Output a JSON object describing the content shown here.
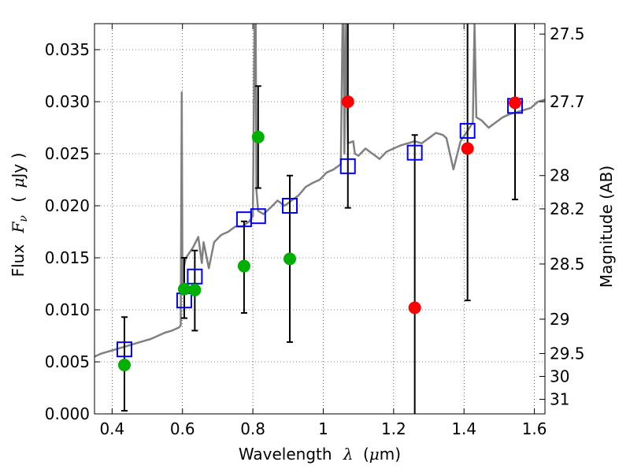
{
  "chart_data": {
    "type": "scatter",
    "title": "",
    "xlabel": "Wavelength",
    "xlabel_symbol": "λ",
    "xlabel_unit_open": "(",
    "xlabel_unit_mu": "μ",
    "xlabel_unit_rest": "m)",
    "ylabel": "Flux",
    "ylabel_symbol": "F",
    "ylabel_subscript": "ν",
    "ylabel_unit_open": "(",
    "ylabel_unit_mu": "μ",
    "ylabel_unit_rest": "Jy )",
    "ylabel_right": "Magnitude (AB)",
    "xlim": [
      0.35,
      1.63
    ],
    "ylim": [
      0.0,
      0.0375
    ],
    "grid": true,
    "x_ticks": [
      {
        "value": 0.4,
        "label": "0.4"
      },
      {
        "value": 0.6,
        "label": "0.6"
      },
      {
        "value": 0.8,
        "label": "0.8"
      },
      {
        "value": 1.0,
        "label": "1"
      },
      {
        "value": 1.2,
        "label": "1.2"
      },
      {
        "value": 1.4,
        "label": "1.4"
      },
      {
        "value": 1.6,
        "label": "1.6"
      }
    ],
    "y_ticks": [
      {
        "value": 0.0,
        "label": "0.000"
      },
      {
        "value": 0.005,
        "label": "0.005"
      },
      {
        "value": 0.01,
        "label": "0.010"
      },
      {
        "value": 0.015,
        "label": "0.015"
      },
      {
        "value": 0.02,
        "label": "0.020"
      },
      {
        "value": 0.025,
        "label": "0.025"
      },
      {
        "value": 0.03,
        "label": "0.030"
      },
      {
        "value": 0.035,
        "label": "0.035"
      }
    ],
    "right_ticks": [
      {
        "flux": 0.0365,
        "label": "27.5"
      },
      {
        "flux": 0.03,
        "label": "27.7"
      },
      {
        "flux": 0.0229,
        "label": "28"
      },
      {
        "flux": 0.0197,
        "label": "28.2"
      },
      {
        "flux": 0.0144,
        "label": "28.5"
      },
      {
        "flux": 0.0091,
        "label": "29"
      },
      {
        "flux": 0.0058,
        "label": "29.5"
      },
      {
        "flux": 0.0036,
        "label": "30"
      },
      {
        "flux": 0.0014,
        "label": "31"
      }
    ],
    "colors": {
      "spectrum": "#808080",
      "model_box": "#0000ff",
      "detection": "#00b000",
      "upper_limit": "#ff0000",
      "errorbar": "#000000"
    },
    "series": [
      {
        "kind": "spectrum",
        "x": [
          0.35,
          0.37,
          0.39,
          0.41,
          0.43,
          0.45,
          0.47,
          0.49,
          0.51,
          0.53,
          0.55,
          0.57,
          0.59,
          0.595,
          0.598,
          0.6,
          0.603,
          0.61,
          0.63,
          0.645,
          0.655,
          0.66,
          0.675,
          0.69,
          0.71,
          0.73,
          0.75,
          0.77,
          0.79,
          0.8,
          0.805,
          0.808,
          0.81,
          0.815,
          0.83,
          0.85,
          0.87,
          0.89,
          0.91,
          0.93,
          0.95,
          0.97,
          0.99,
          1.01,
          1.03,
          1.05,
          1.055,
          1.058,
          1.06,
          1.065,
          1.07,
          1.085,
          1.09,
          1.1,
          1.12,
          1.14,
          1.16,
          1.18,
          1.2,
          1.22,
          1.24,
          1.26,
          1.28,
          1.3,
          1.32,
          1.34,
          1.35,
          1.37,
          1.39,
          1.41,
          1.425,
          1.43,
          1.435,
          1.45,
          1.47,
          1.49,
          1.51,
          1.53,
          1.55,
          1.57,
          1.59,
          1.61,
          1.63
        ],
        "y": [
          0.0055,
          0.0058,
          0.006,
          0.0062,
          0.0064,
          0.0066,
          0.0068,
          0.007,
          0.0072,
          0.0075,
          0.0078,
          0.008,
          0.0083,
          0.0085,
          0.0309,
          0.012,
          0.014,
          0.015,
          0.016,
          0.017,
          0.0145,
          0.0165,
          0.014,
          0.0165,
          0.0172,
          0.0175,
          0.018,
          0.018,
          0.0185,
          0.019,
          0.0375,
          0.0375,
          0.0215,
          0.0195,
          0.0192,
          0.0198,
          0.0205,
          0.02,
          0.0205,
          0.021,
          0.0218,
          0.0222,
          0.0225,
          0.0232,
          0.0235,
          0.024,
          0.0375,
          0.0375,
          0.025,
          0.0375,
          0.026,
          0.0262,
          0.025,
          0.0248,
          0.0255,
          0.025,
          0.0245,
          0.0252,
          0.0255,
          0.0258,
          0.026,
          0.0262,
          0.026,
          0.0265,
          0.027,
          0.0268,
          0.0265,
          0.0235,
          0.0262,
          0.0272,
          0.028,
          0.0375,
          0.0285,
          0.0282,
          0.0275,
          0.028,
          0.0285,
          0.0288,
          0.029,
          0.0292,
          0.0294,
          0.03,
          0.0302
        ]
      },
      {
        "kind": "model_box",
        "points": [
          {
            "x": 0.435,
            "y": 0.0062
          },
          {
            "x": 0.605,
            "y": 0.0109
          },
          {
            "x": 0.635,
            "y": 0.0132
          },
          {
            "x": 0.775,
            "y": 0.0187
          },
          {
            "x": 0.815,
            "y": 0.019
          },
          {
            "x": 0.905,
            "y": 0.02
          },
          {
            "x": 1.07,
            "y": 0.0238
          },
          {
            "x": 1.26,
            "y": 0.0251
          },
          {
            "x": 1.41,
            "y": 0.0272
          },
          {
            "x": 1.545,
            "y": 0.0296
          }
        ]
      },
      {
        "kind": "detection",
        "points": [
          {
            "x": 0.435,
            "y": 0.0047,
            "lo": 0.0003,
            "hi": 0.0093
          },
          {
            "x": 0.605,
            "y": 0.012,
            "lo": 0.0092,
            "hi": 0.015
          },
          {
            "x": 0.635,
            "y": 0.0119,
            "lo": 0.008,
            "hi": 0.0157
          },
          {
            "x": 0.775,
            "y": 0.0142,
            "lo": 0.0097,
            "hi": 0.0185
          },
          {
            "x": 0.815,
            "y": 0.0266,
            "lo": 0.0217,
            "hi": 0.0315
          },
          {
            "x": 0.905,
            "y": 0.0149,
            "lo": 0.0069,
            "hi": 0.0229
          }
        ]
      },
      {
        "kind": "upper_limit",
        "points": [
          {
            "x": 1.07,
            "y": 0.03,
            "lo": 0.0198,
            "hi": 0.0375
          },
          {
            "x": 1.26,
            "y": 0.0102,
            "lo": 0.0,
            "hi": 0.0268
          },
          {
            "x": 1.41,
            "y": 0.0255,
            "lo": 0.0109,
            "hi": 0.0375
          },
          {
            "x": 1.545,
            "y": 0.0299,
            "lo": 0.0206,
            "hi": 0.0375
          }
        ]
      }
    ]
  }
}
